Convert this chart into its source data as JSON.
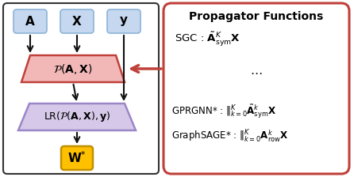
{
  "fig_width": 4.46,
  "fig_height": 2.24,
  "dpi": 100,
  "bg_color": "#ffffff",
  "node_color": "#c5d8f0",
  "node_edge": "#8cb4d8",
  "prop_box_color": "#f2b8b8",
  "prop_box_edge": "#c0403a",
  "lr_box_color": "#d5c8e8",
  "lr_box_edge": "#9b86c8",
  "w_box_color": "#ffc000",
  "w_box_edge": "#c09000",
  "right_box_edge": "#c0403a",
  "arrow_color": "#111111",
  "red_arrow_color": "#c0403a",
  "title": "Propagator Functions"
}
